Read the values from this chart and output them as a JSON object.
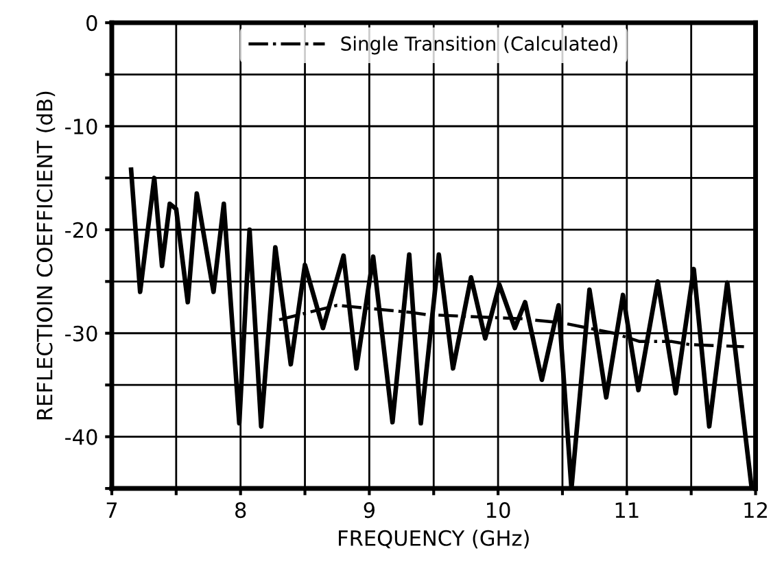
{
  "chart_data": {
    "type": "line",
    "xlabel": "FREQUENCY (GHz)",
    "ylabel": "REFLECTIOIN COEFFICIENT (dB)",
    "xlim": [
      7,
      12
    ],
    "ylim": [
      -45,
      0
    ],
    "xticks": [
      7,
      {
        "value": 7.5,
        "label": null
      },
      8,
      {
        "value": 8.5,
        "label": null
      },
      9,
      {
        "value": 9.5,
        "label": null
      },
      10,
      {
        "value": 10.5,
        "label": null
      },
      11,
      {
        "value": 11.5,
        "label": null
      },
      12
    ],
    "yticks": [
      {
        "value": -45,
        "label": null
      },
      -40,
      {
        "value": -35,
        "label": null
      },
      -30,
      {
        "value": -25,
        "label": null
      },
      -20,
      {
        "value": -15,
        "label": null
      },
      -10,
      {
        "value": -5,
        "label": null
      },
      0
    ],
    "grid": true,
    "legend": "top",
    "series": [
      {
        "color": "#000000",
        "line_style": "solid",
        "x": [
          7.15,
          7.22,
          7.33,
          7.39,
          7.45,
          7.5,
          7.59,
          7.66,
          7.79,
          7.87,
          7.99,
          8.07,
          8.16,
          8.27,
          8.39,
          8.5,
          8.64,
          8.8,
          8.9,
          9.03,
          9.18,
          9.31,
          9.4,
          9.54,
          9.65,
          9.79,
          9.9,
          10.01,
          10.13,
          10.21,
          10.34,
          10.47,
          10.57,
          10.71,
          10.84,
          10.97,
          11.09,
          11.24,
          11.38,
          11.52,
          11.64,
          11.78,
          11.97
        ],
        "values": [
          -14.2,
          -26,
          -15,
          -23.5,
          -17.5,
          -18,
          -27,
          -16.5,
          -26,
          -17.5,
          -38.7,
          -20,
          -39,
          -21.7,
          -33,
          -23.4,
          -29.5,
          -22.5,
          -33.4,
          -22.6,
          -38.6,
          -22.4,
          -38.7,
          -22.4,
          -33.4,
          -24.6,
          -30.5,
          -25.3,
          -29.5,
          -27,
          -34.5,
          -27.3,
          -45,
          -25.8,
          -36.2,
          -26.3,
          -35.5,
          -25,
          -35.8,
          -23.8,
          -39,
          -25.1,
          -45
        ]
      },
      {
        "name": "Single Transition (Calculated)",
        "color": "#000000",
        "line_style": "dashdot",
        "x": [
          8.3,
          8.75,
          9.33,
          9.44,
          10.18,
          10.5,
          10.9,
          11.1,
          11.35,
          11.49,
          11.91
        ],
        "values": [
          -28.7,
          -27.3,
          -28,
          -28.2,
          -28.6,
          -29,
          -30,
          -30.8,
          -30.8,
          -31.1,
          -31.3
        ]
      }
    ]
  }
}
